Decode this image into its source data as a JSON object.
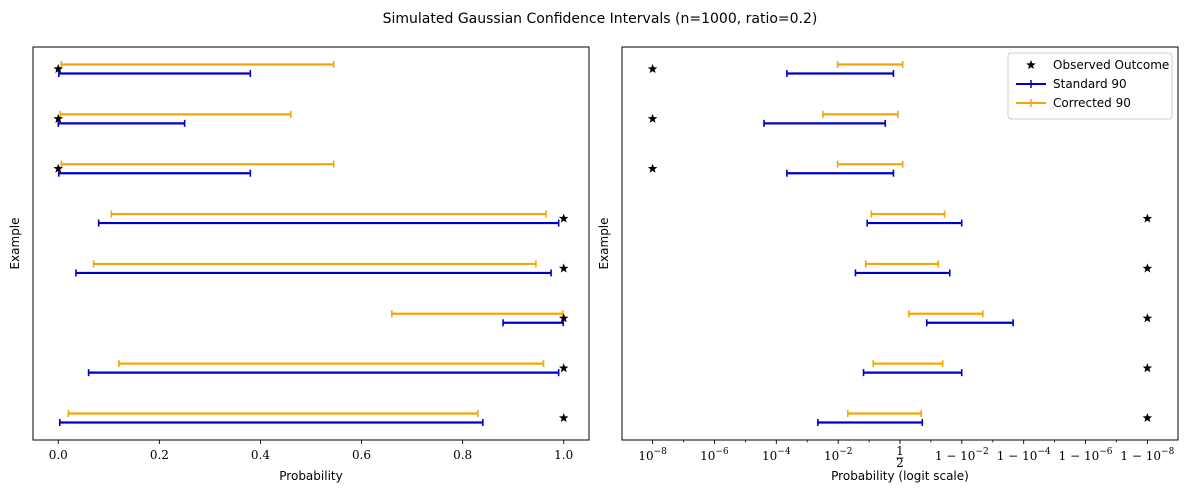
{
  "figure_title": "Simulated Gaussian Confidence Intervals (n=1000, ratio=0.2)",
  "colors": {
    "standard": "#0000cc",
    "corrected": "#f5a40a",
    "observed": "#000000"
  },
  "chart_data": [
    {
      "type": "errorbar",
      "panel": "left",
      "xlabel": "Probability",
      "ylabel": "Example",
      "xscale": "linear",
      "xlim": [
        -0.05,
        1.05
      ],
      "xticks": [
        0.0,
        0.2,
        0.4,
        0.6,
        0.8,
        1.0
      ],
      "xtick_labels": [
        "0.0",
        "0.2",
        "0.4",
        "0.6",
        "0.8",
        "1.0"
      ],
      "series_names": {
        "observed": "Observed Outcome",
        "standard": "Standard 90",
        "corrected": "Corrected 90"
      },
      "examples": [
        {
          "observed": 0,
          "standard": [
            0.001,
            0.38
          ],
          "corrected": [
            0.006,
            0.545
          ]
        },
        {
          "observed": 0,
          "standard": [
            0.0,
            0.25
          ],
          "corrected": [
            0.004,
            0.46
          ]
        },
        {
          "observed": 0,
          "standard": [
            0.001,
            0.38
          ],
          "corrected": [
            0.006,
            0.545
          ]
        },
        {
          "observed": 1,
          "standard": [
            0.08,
            0.99
          ],
          "corrected": [
            0.105,
            0.965
          ]
        },
        {
          "observed": 1,
          "standard": [
            0.035,
            0.975
          ],
          "corrected": [
            0.07,
            0.945
          ]
        },
        {
          "observed": 1,
          "standard": [
            0.88,
            0.999
          ],
          "corrected": [
            0.66,
            0.998
          ]
        },
        {
          "observed": 1,
          "standard": [
            0.06,
            0.99
          ],
          "corrected": [
            0.12,
            0.96
          ]
        },
        {
          "observed": 1,
          "standard": [
            0.003,
            0.84
          ],
          "corrected": [
            0.02,
            0.83
          ]
        }
      ]
    },
    {
      "type": "errorbar",
      "panel": "right",
      "xlabel": "Probability (logit scale)",
      "ylabel": "Example",
      "xscale": "logit",
      "xlim": [
        -20.7,
        20.7
      ],
      "xticks": [
        -18.42,
        -13.82,
        -9.21,
        -4.6,
        0,
        4.6,
        9.21,
        13.82,
        18.42
      ],
      "xtick_labels": [
        "10^-8",
        "10^-6",
        "10^-4",
        "10^-2",
        "½",
        "1 − 10^-2",
        "1 − 10^-4",
        "1 − 10^-6",
        "1 − 10^-8"
      ],
      "xtick_labels_rich": [
        {
          "base": "10",
          "exp": "−8"
        },
        {
          "base": "10",
          "exp": "−6"
        },
        {
          "base": "10",
          "exp": "−4"
        },
        {
          "base": "10",
          "exp": "−2"
        },
        {
          "frac": "1/2"
        },
        {
          "pre": "1 − ",
          "base": "10",
          "exp": "−2"
        },
        {
          "pre": "1 − ",
          "base": "10",
          "exp": "−4"
        },
        {
          "pre": "1 − ",
          "base": "10",
          "exp": "−6"
        },
        {
          "pre": "1 − ",
          "base": "10",
          "exp": "−8"
        }
      ],
      "legend": {
        "position": "upper right",
        "entries": [
          "Observed Outcome",
          "Standard 90",
          "Corrected 90"
        ]
      },
      "examples": [
        {
          "observed": 1e-08,
          "standard": [
            0.00022,
            0.38
          ],
          "corrected": [
            0.0095,
            0.55
          ]
        },
        {
          "observed": 1e-08,
          "standard": [
            4e-05,
            0.25
          ],
          "corrected": [
            0.0032,
            0.46
          ]
        },
        {
          "observed": 1e-08,
          "standard": [
            0.00022,
            0.38
          ],
          "corrected": [
            0.0095,
            0.55
          ]
        },
        {
          "observed": 0.99999999,
          "standard": [
            0.08,
            0.99
          ],
          "corrected": [
            0.106,
            0.965
          ]
        },
        {
          "observed": 0.99999999,
          "standard": [
            0.035,
            0.976
          ],
          "corrected": [
            0.072,
            0.945
          ]
        },
        {
          "observed": 0.99999999,
          "standard": [
            0.88,
            0.99978
          ],
          "corrected": [
            0.66,
            0.9979
          ]
        },
        {
          "observed": 0.99999999,
          "standard": [
            0.062,
            0.99
          ],
          "corrected": [
            0.12,
            0.96
          ]
        },
        {
          "observed": 0.99999999,
          "standard": [
            0.0022,
            0.84
          ],
          "corrected": [
            0.02,
            0.83
          ]
        }
      ]
    }
  ]
}
